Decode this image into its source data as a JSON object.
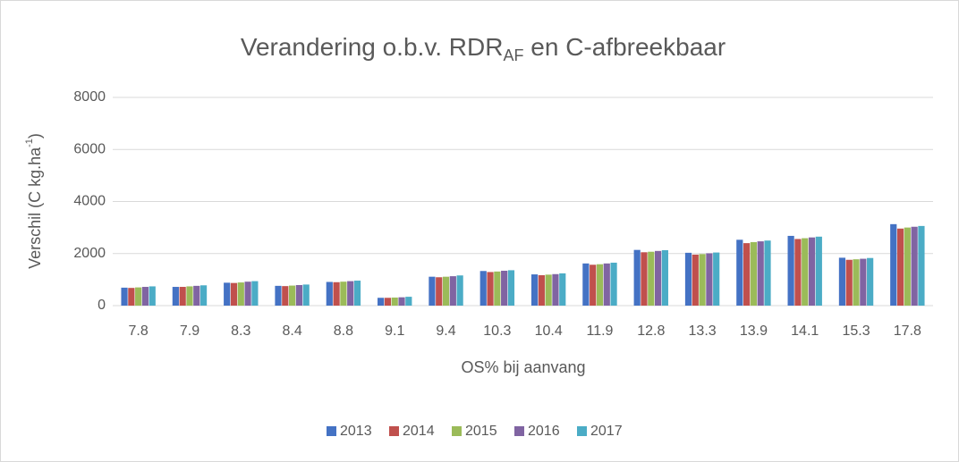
{
  "chart_data": {
    "type": "bar",
    "title": [
      "Verandering o.b.v. RDR",
      "AF",
      " en C-afbreekbaar"
    ],
    "x_label": "OS% bij aanvang",
    "y_label": [
      "Verschil (C kg.ha",
      "-1",
      ")"
    ],
    "categories": [
      "7.8",
      "7.9",
      "8.3",
      "8.4",
      "8.8",
      "9.1",
      "9.4",
      "10.3",
      "10.4",
      "11.9",
      "12.8",
      "13.3",
      "13.9",
      "14.1",
      "15.3",
      "17.8"
    ],
    "series": [
      {
        "name": "2013",
        "color": "#4472c4",
        "values": [
          690,
          720,
          880,
          760,
          910,
          300,
          1110,
          1330,
          1200,
          1620,
          2140,
          2030,
          2530,
          2680,
          1840,
          3130
        ]
      },
      {
        "name": "2014",
        "color": "#c0504d",
        "values": [
          680,
          720,
          870,
          750,
          900,
          300,
          1090,
          1290,
          1170,
          1570,
          2050,
          1960,
          2400,
          2560,
          1760,
          2960
        ]
      },
      {
        "name": "2015",
        "color": "#9bbb59",
        "values": [
          700,
          740,
          890,
          770,
          920,
          310,
          1110,
          1310,
          1190,
          1590,
          2070,
          1980,
          2440,
          2590,
          1780,
          3000
        ]
      },
      {
        "name": "2016",
        "color": "#8064a2",
        "values": [
          720,
          760,
          920,
          790,
          940,
          320,
          1130,
          1340,
          1210,
          1620,
          2100,
          2010,
          2470,
          2620,
          1800,
          3030
        ]
      },
      {
        "name": "2017",
        "color": "#4bacc6",
        "values": [
          740,
          780,
          940,
          810,
          960,
          340,
          1160,
          1360,
          1240,
          1650,
          2130,
          2040,
          2500,
          2650,
          1830,
          3060
        ]
      }
    ],
    "ylim": [
      0,
      8000
    ],
    "yticks": [
      0,
      2000,
      4000,
      6000,
      8000
    ],
    "grid": true,
    "legend": "bottom"
  }
}
